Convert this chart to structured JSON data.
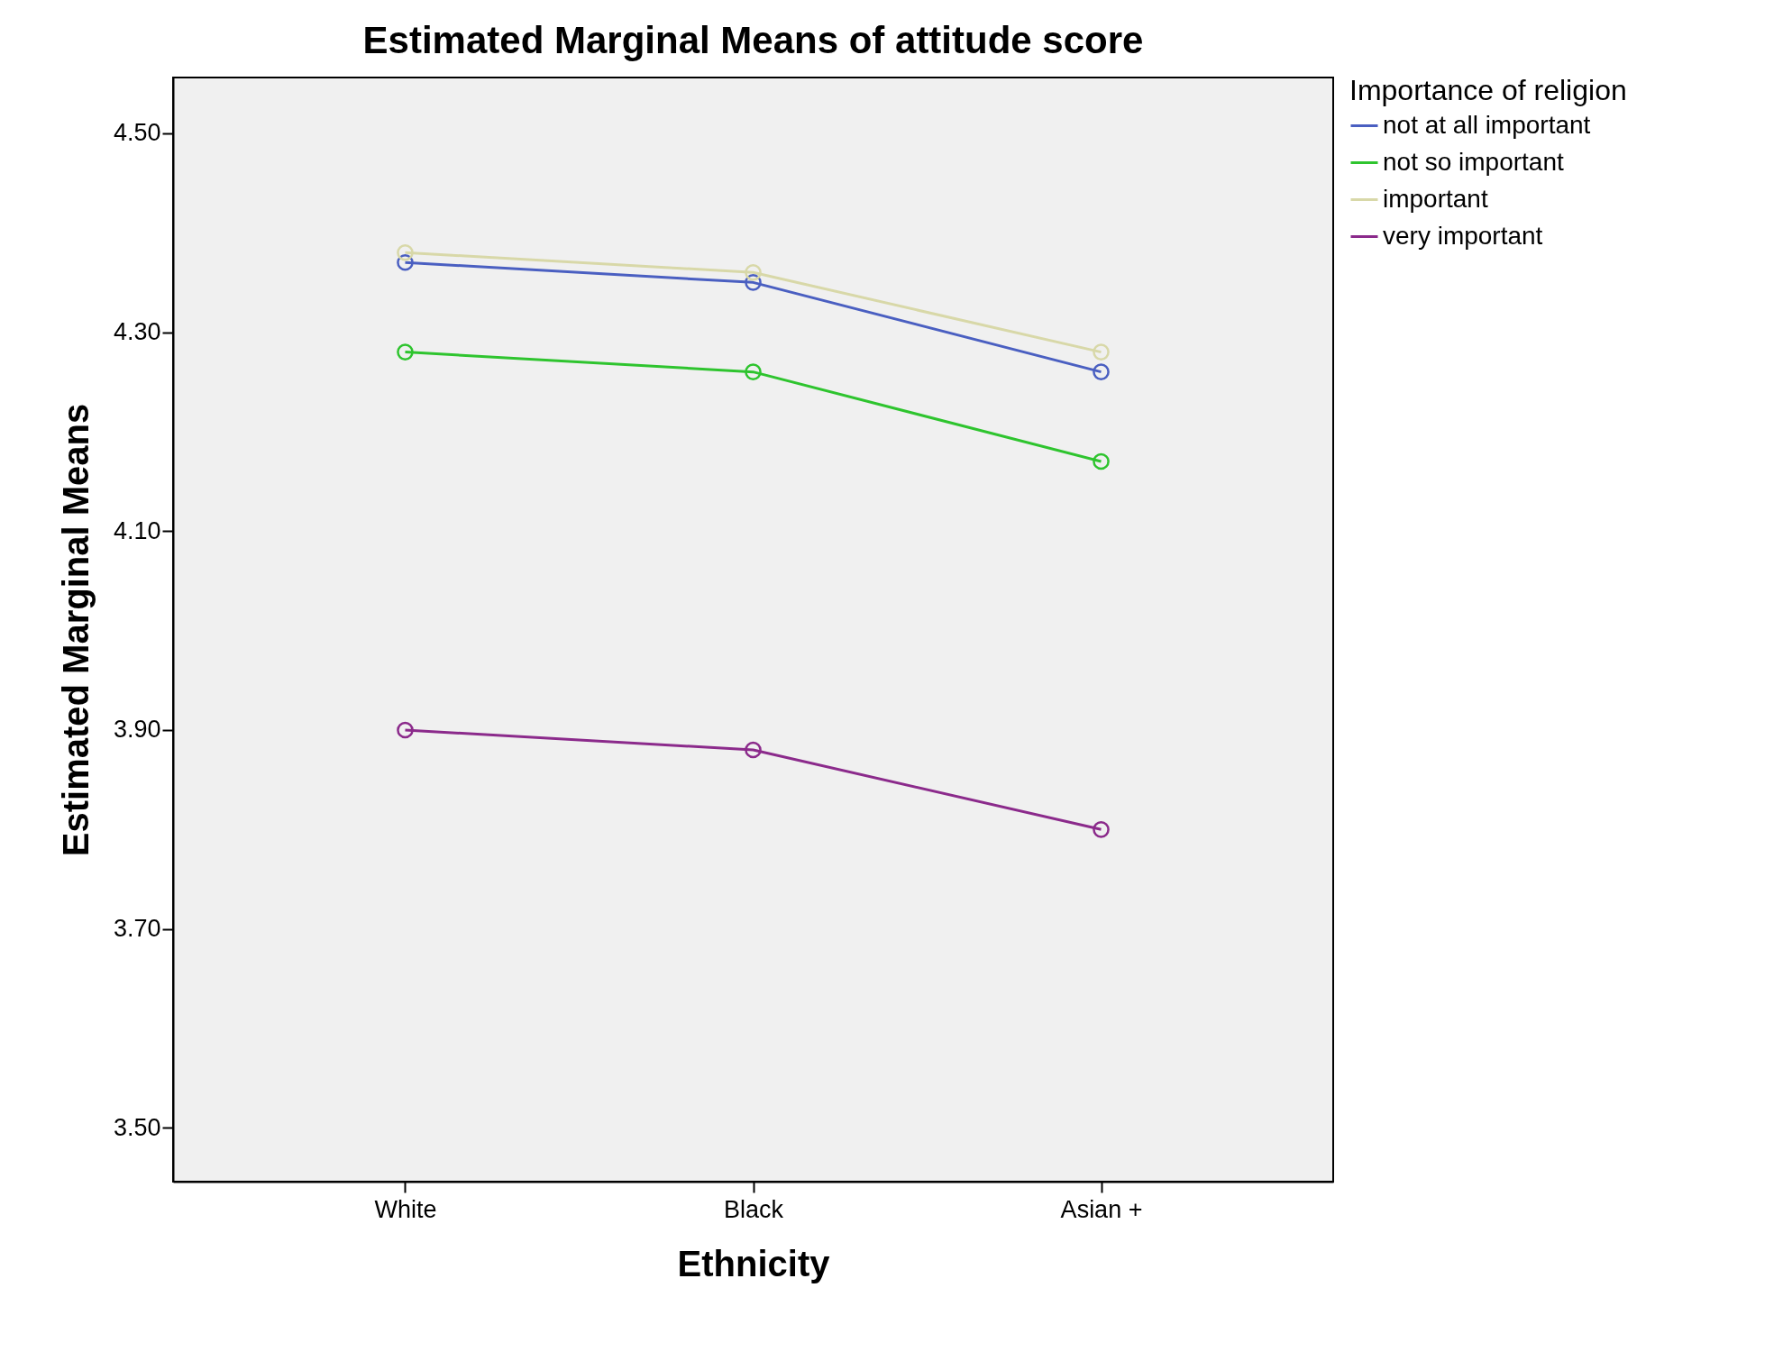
{
  "chart_data": {
    "type": "line",
    "title": "Estimated Marginal Means of attitude score",
    "xlabel": "Ethnicity",
    "ylabel": "Estimated Marginal Means",
    "legend_title": "Importance of religion",
    "categories": [
      "White",
      "Black",
      "Asian +"
    ],
    "series": [
      {
        "name": "not at all important",
        "color": "#4a5fc1",
        "values": [
          4.37,
          4.35,
          4.26
        ]
      },
      {
        "name": "not so important",
        "color": "#2ec42e",
        "values": [
          4.28,
          4.26,
          4.17
        ]
      },
      {
        "name": "important",
        "color": "#d8d8a8",
        "values": [
          4.38,
          4.36,
          4.28
        ]
      },
      {
        "name": "very important",
        "color": "#8b2a8b",
        "values": [
          3.9,
          3.88,
          3.8
        ]
      }
    ],
    "ylim": [
      3.446,
      4.556
    ],
    "yticks": [
      {
        "value": 3.5,
        "label": "3.50"
      },
      {
        "value": 3.7,
        "label": "3.70"
      },
      {
        "value": 3.9,
        "label": "3.90"
      },
      {
        "value": 4.1,
        "label": "4.10"
      },
      {
        "value": 4.3,
        "label": "4.30"
      },
      {
        "value": 4.5,
        "label": "4.50"
      }
    ],
    "grid": false,
    "legend": "top right",
    "marker": "circle",
    "line_style": "solid"
  }
}
